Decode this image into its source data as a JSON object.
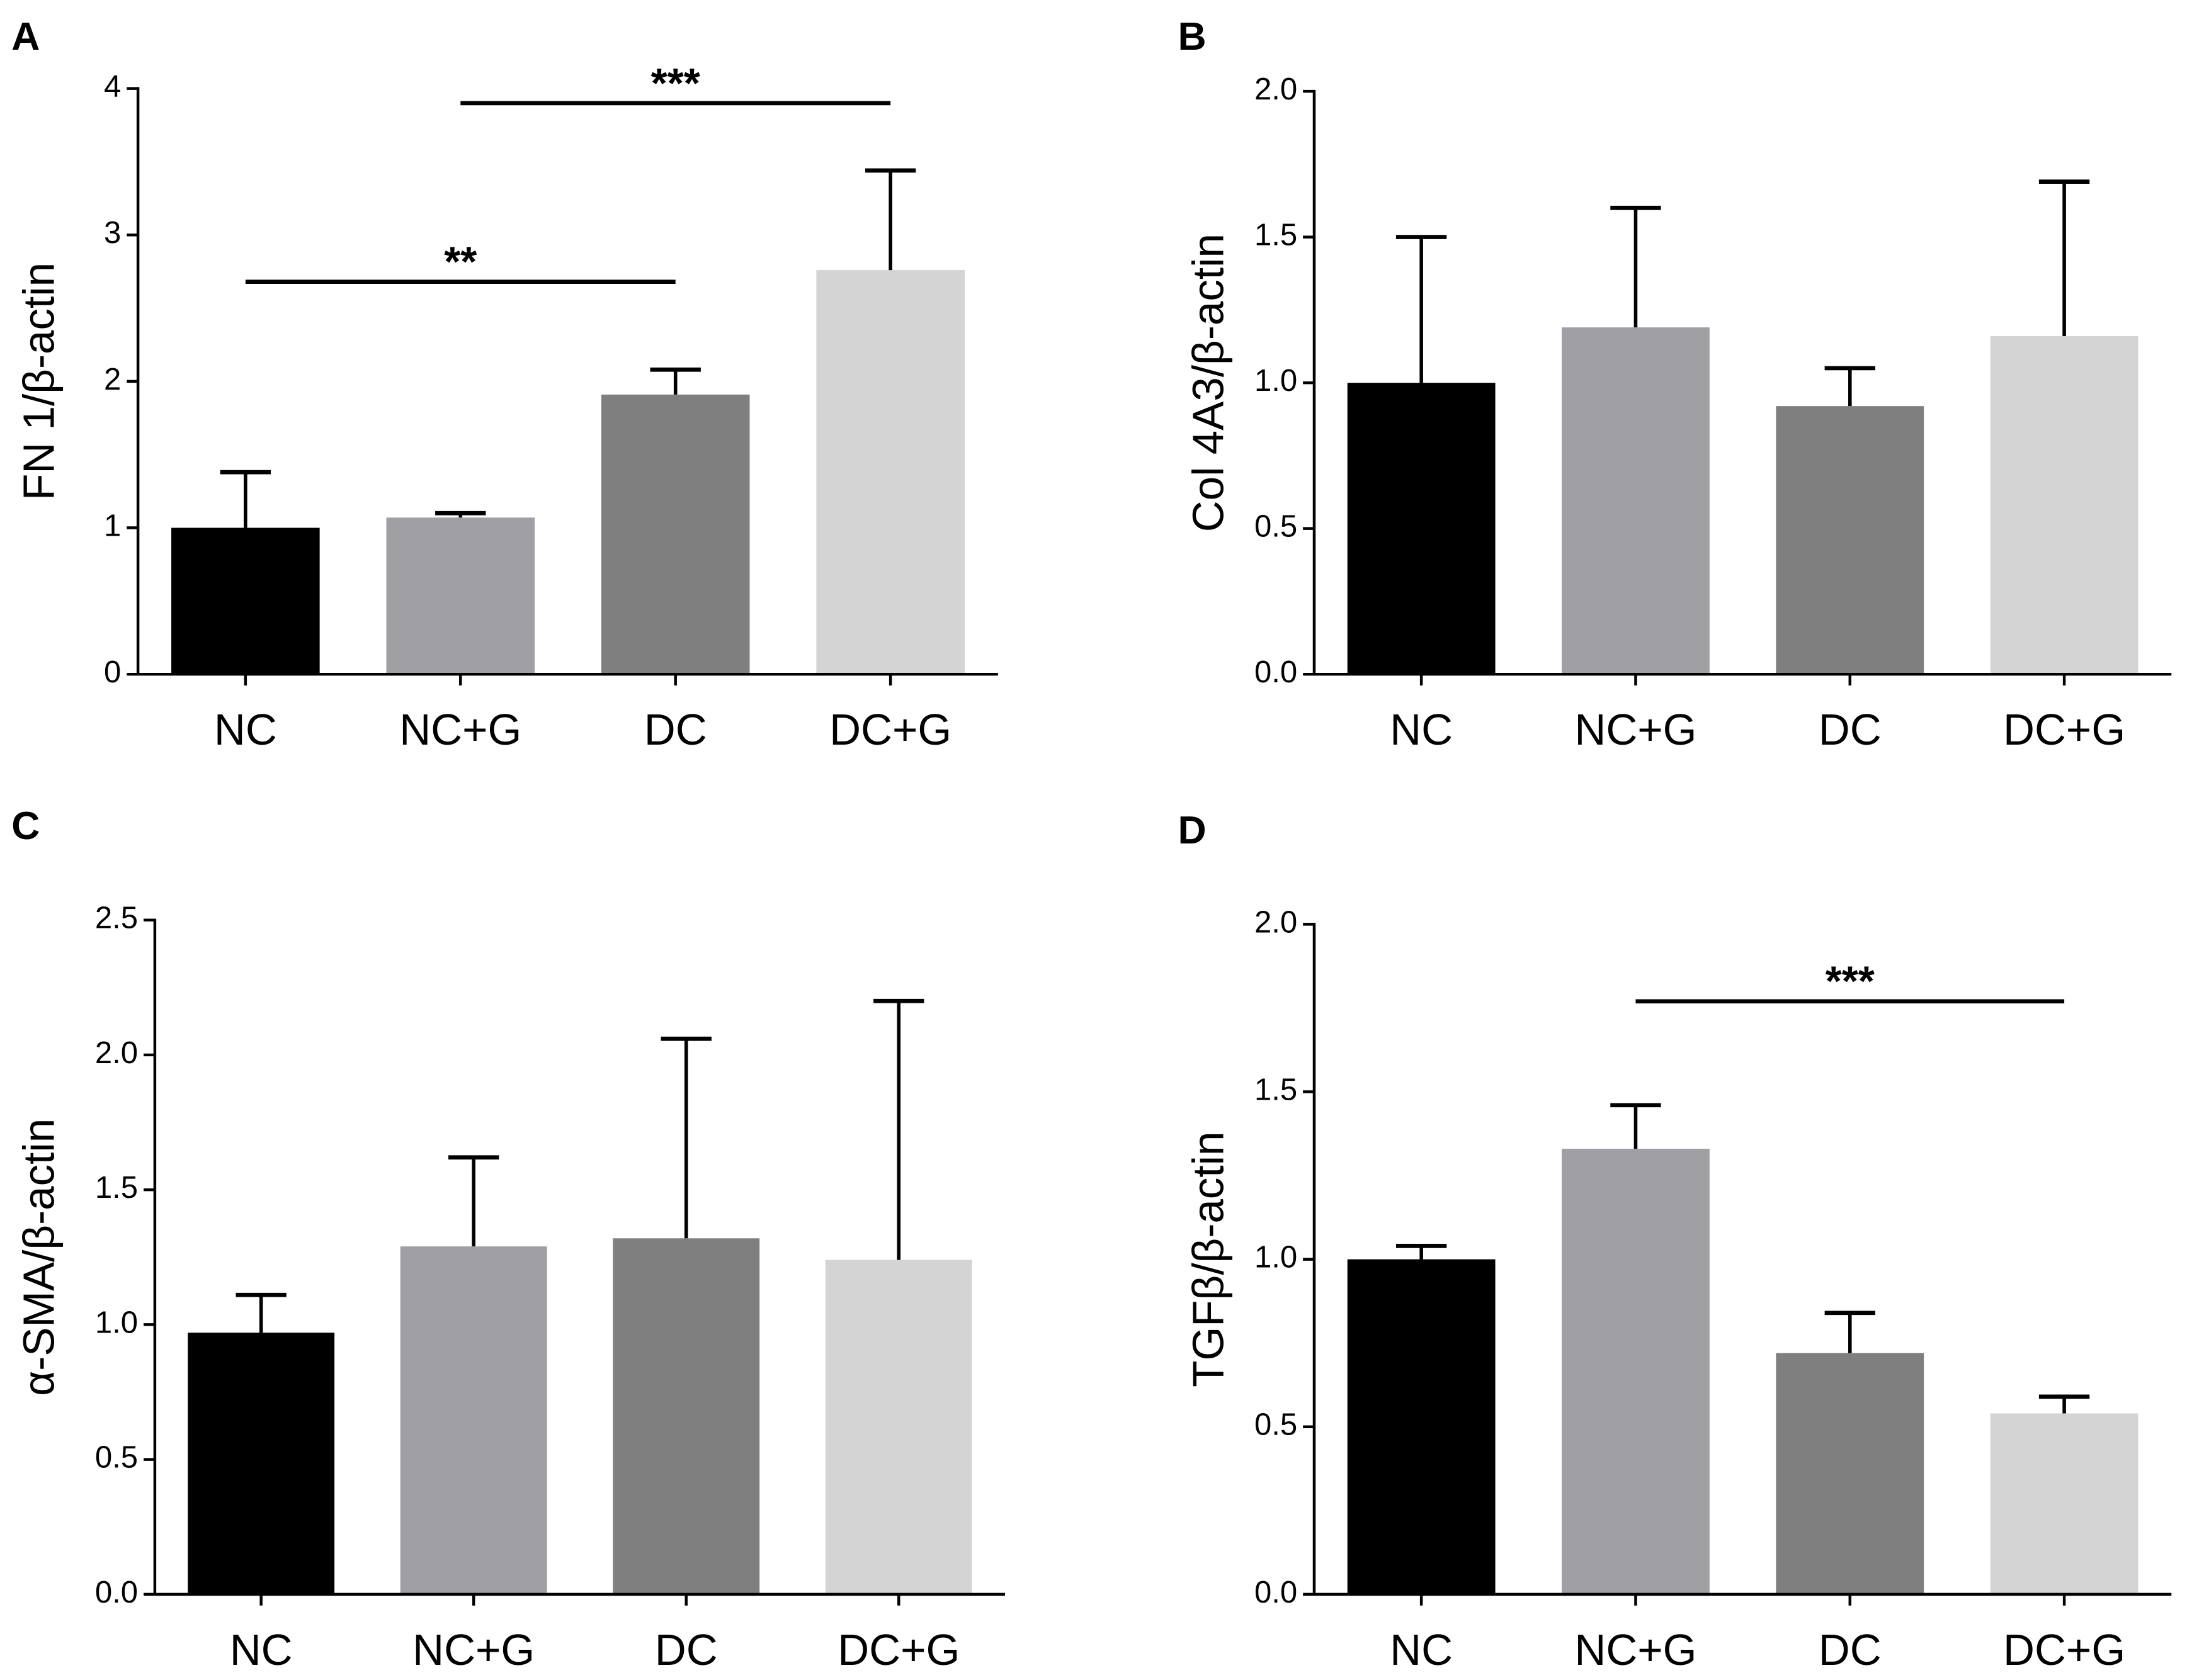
{
  "chart_data": [
    {
      "type": "bar",
      "panel_label": "A",
      "y_label": "FN 1/β-actin",
      "categories": [
        "NC",
        "NC+G",
        "DC",
        "DC+G"
      ],
      "values": [
        1.0,
        1.07,
        1.91,
        2.76
      ],
      "errors": [
        0.38,
        0.03,
        0.17,
        0.68
      ],
      "colors": [
        "#000000",
        "#a0a0a4",
        "#7f7f7f",
        "#d4d4d4"
      ],
      "ylim": [
        0,
        4
      ],
      "yticks": [
        0,
        1,
        2,
        3,
        4
      ],
      "annotations": [
        {
          "text": "**",
          "start": "NC",
          "end": "DC",
          "y": 2.68
        },
        {
          "text": "***",
          "start": "NC+G",
          "end": "DC+G",
          "y": 3.9
        }
      ]
    },
    {
      "type": "bar",
      "panel_label": "B",
      "y_label": "Col 4A3/β-actin",
      "categories": [
        "NC",
        "NC+G",
        "DC",
        "DC+G"
      ],
      "values": [
        1.0,
        1.19,
        0.92,
        1.16
      ],
      "errors": [
        0.5,
        0.41,
        0.13,
        0.53
      ],
      "colors": [
        "#000000",
        "#a0a0a4",
        "#7f7f7f",
        "#d4d4d4"
      ],
      "ylim": [
        0,
        2
      ],
      "yticks": [
        {
          "value": 0,
          "label": "0.0"
        },
        0.5,
        {
          "value": 1,
          "label": "1.0"
        },
        1.5,
        {
          "value": 2,
          "label": "2.0"
        }
      ],
      "annotations": []
    },
    {
      "type": "bar",
      "panel_label": "C",
      "y_label": "α-SMA/β-actin",
      "categories": [
        "NC",
        "NC+G",
        "DC",
        "DC+G"
      ],
      "values": [
        0.97,
        1.29,
        1.32,
        1.24
      ],
      "errors": [
        0.14,
        0.33,
        0.74,
        0.96
      ],
      "colors": [
        "#000000",
        "#a0a0a4",
        "#7f7f7f",
        "#d4d4d4"
      ],
      "ylim": [
        0,
        2.5
      ],
      "yticks": [
        {
          "value": 0,
          "label": "0.0"
        },
        0.5,
        {
          "value": 1,
          "label": "1.0"
        },
        1.5,
        {
          "value": 2,
          "label": "2.0"
        },
        2.5
      ],
      "annotations": []
    },
    {
      "type": "bar",
      "panel_label": "D",
      "y_label": "TGFβ/β-actin",
      "categories": [
        "NC",
        "NC+G",
        "DC",
        "DC+G"
      ],
      "values": [
        1.0,
        1.33,
        0.72,
        0.54
      ],
      "errors": [
        0.04,
        0.13,
        0.12,
        0.05
      ],
      "colors": [
        "#000000",
        "#a0a0a4",
        "#7f7f7f",
        "#d4d4d4"
      ],
      "ylim": [
        0,
        2
      ],
      "yticks": [
        {
          "value": 0,
          "label": "0.0"
        },
        0.5,
        {
          "value": 1,
          "label": "1.0"
        },
        1.5,
        {
          "value": 2,
          "label": "2.0"
        }
      ],
      "annotations": [
        {
          "text": "***",
          "start": "NC+G",
          "end": "DC+G",
          "y": 1.77
        }
      ]
    }
  ]
}
